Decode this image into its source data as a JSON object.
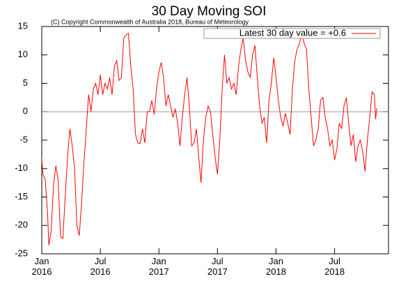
{
  "chart_data": {
    "type": "line",
    "title": "30 Day Moving SOI",
    "subtitle": "(C) Copyright Commonwealth of Australia 2018, Bureau of Meteorology",
    "x": [
      2016.0,
      2016.01,
      2016.03,
      2016.05,
      2016.06,
      2016.08,
      2016.1,
      2016.12,
      2016.14,
      2016.16,
      2016.18,
      2016.2,
      2016.22,
      2016.24,
      2016.26,
      2016.28,
      2016.3,
      2016.32,
      2016.34,
      2016.36,
      2016.38,
      2016.4,
      2016.42,
      2016.44,
      2016.46,
      2016.48,
      2016.5,
      2016.52,
      2016.54,
      2016.56,
      2016.58,
      2016.6,
      2016.62,
      2016.64,
      2016.66,
      2016.68,
      2016.7,
      2016.72,
      2016.74,
      2016.76,
      2016.78,
      2016.8,
      2016.82,
      2016.84,
      2016.86,
      2016.88,
      2016.9,
      2016.92,
      2016.94,
      2016.96,
      2016.98,
      2017.0,
      2017.02,
      2017.04,
      2017.06,
      2017.08,
      2017.1,
      2017.12,
      2017.14,
      2017.16,
      2017.18,
      2017.2,
      2017.22,
      2017.24,
      2017.26,
      2017.28,
      2017.3,
      2017.32,
      2017.34,
      2017.36,
      2017.38,
      2017.4,
      2017.42,
      2017.44,
      2017.46,
      2017.48,
      2017.5,
      2017.52,
      2017.54,
      2017.56,
      2017.58,
      2017.6,
      2017.62,
      2017.64,
      2017.66,
      2017.68,
      2017.7,
      2017.72,
      2017.74,
      2017.76,
      2017.78,
      2017.8,
      2017.82,
      2017.84,
      2017.86,
      2017.88,
      2017.9,
      2017.92,
      2017.94,
      2017.96,
      2017.98,
      2018.0,
      2018.02,
      2018.04,
      2018.06,
      2018.08,
      2018.1,
      2018.12,
      2018.14,
      2018.16,
      2018.18,
      2018.2,
      2018.22,
      2018.24,
      2018.26,
      2018.28,
      2018.3,
      2018.32,
      2018.34,
      2018.36,
      2018.38,
      2018.4,
      2018.42,
      2018.44,
      2018.46,
      2018.48,
      2018.5,
      2018.52,
      2018.54,
      2018.56,
      2018.58,
      2018.6,
      2018.62,
      2018.64,
      2018.66,
      2018.68,
      2018.7,
      2018.72,
      2018.74,
      2018.76,
      2018.78,
      2018.8,
      2018.82,
      2018.84,
      2018.85,
      2018.86
    ],
    "series": [
      {
        "name": "Latest 30 day value = +0.6",
        "color": "#ff0000",
        "values": [
          -8.3,
          -11,
          -12,
          -18,
          -23.5,
          -21,
          -13,
          -9.5,
          -12,
          -22,
          -22.3,
          -15,
          -8,
          -3,
          -6,
          -10,
          -20,
          -21.8,
          -16,
          -9,
          -3,
          3,
          0,
          4,
          5,
          3,
          6.5,
          3,
          5,
          4,
          6,
          3,
          8,
          9,
          5.5,
          6,
          13,
          13.5,
          13.8,
          8,
          4,
          -4,
          -5.5,
          -5.6,
          -3,
          -5.5,
          0,
          0,
          2,
          -0.5,
          4,
          7,
          8.7,
          6,
          1,
          3,
          1,
          -1,
          0.5,
          -2,
          -6,
          -1,
          3,
          6,
          1,
          -6,
          -5.5,
          -3,
          -8,
          -12.5,
          -5,
          -1,
          1,
          0,
          -4,
          -8,
          -11,
          -5,
          4,
          10,
          5,
          6,
          4,
          5,
          3,
          8,
          11,
          13,
          9,
          7,
          6,
          10,
          11.7,
          6,
          1,
          -2,
          -1,
          -5.5,
          2,
          5,
          9.5,
          6,
          2,
          -1,
          -2.5,
          -0.3,
          -2,
          -4,
          4,
          9,
          11,
          12,
          13.8,
          12,
          11,
          4,
          -1,
          -6,
          -5,
          -3,
          2,
          2.5,
          -1,
          -3,
          -6,
          -5,
          -8.5,
          -6.5,
          -2,
          -3,
          1,
          2.5,
          -2,
          -6,
          -4,
          -8.8,
          -6,
          -5,
          -7,
          -10.5,
          -5,
          -1,
          3.5,
          3,
          -1.3,
          0.6
        ]
      }
    ],
    "xlim": [
      2016.0,
      2018.96
    ],
    "xticks": [
      {
        "value": 2016.0,
        "label": "Jan 2016"
      },
      {
        "value": 2016.5,
        "label": "Jul 2016"
      },
      {
        "value": 2017.0,
        "label": "Jan 2017"
      },
      {
        "value": 2017.5,
        "label": "Jul 2017"
      },
      {
        "value": 2018.0,
        "label": "Jan 2018"
      },
      {
        "value": 2018.5,
        "label": "Jul 2018"
      }
    ],
    "ylim": [
      -25,
      15
    ],
    "yticks": [
      -25,
      -20,
      -15,
      -10,
      -5,
      0,
      5,
      10,
      15
    ],
    "zero_line": true,
    "legend": "upper right"
  }
}
